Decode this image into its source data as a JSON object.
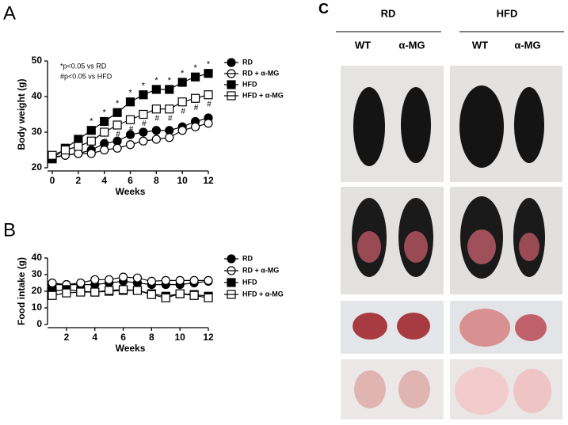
{
  "panels": {
    "a": "A",
    "b": "B",
    "c": "C"
  },
  "chart_data": [
    {
      "type": "line",
      "xlabel": "Weeks",
      "ylabel": "Body weight (g)",
      "x": [
        0,
        1,
        2,
        3,
        4,
        5,
        6,
        7,
        8,
        9,
        10,
        11,
        12
      ],
      "xlim": [
        0,
        12
      ],
      "xticks": [
        0,
        2,
        4,
        6,
        8,
        10,
        12
      ],
      "ylim": [
        20,
        50
      ],
      "yticks": [
        20,
        30,
        40,
        50
      ],
      "notes": [
        "*p<0.05 vs RD",
        "#p<0.05 vs HFD"
      ],
      "star": {
        "label": "*",
        "x": [
          3,
          4,
          5,
          6,
          7,
          8,
          9,
          10,
          11,
          12
        ]
      },
      "hash": {
        "label": "#",
        "x": [
          4,
          5,
          6,
          7,
          8,
          9,
          10,
          11,
          12
        ]
      },
      "series": [
        {
          "name": "RD",
          "color": "#000000",
          "marker": "circle",
          "filled": true,
          "values": [
            22.8,
            23.5,
            24,
            25,
            26.8,
            27.5,
            29.3,
            30,
            30.5,
            30.5,
            31.5,
            33,
            34
          ]
        },
        {
          "name": "RD + α-MG",
          "color": "#000000",
          "marker": "circle",
          "filled": false,
          "values": [
            23,
            23.5,
            24,
            24,
            25,
            25.5,
            26.5,
            27.5,
            28,
            28.5,
            30.5,
            31.5,
            32.5
          ]
        },
        {
          "name": "HFD",
          "color": "#000000",
          "marker": "square",
          "filled": true,
          "values": [
            22.5,
            25.5,
            28,
            30.5,
            33,
            35.5,
            38.5,
            40.5,
            42,
            42,
            44,
            45.5,
            46.5
          ]
        },
        {
          "name": "HFD + α-MG",
          "color": "#000000",
          "marker": "square",
          "filled": false,
          "values": [
            23.5,
            25,
            26,
            27.5,
            30,
            32,
            33.5,
            35,
            36.5,
            36.5,
            38.5,
            39.5,
            40.5
          ]
        }
      ]
    },
    {
      "type": "line",
      "xlabel": "Weeks",
      "ylabel": "Food intake (g)",
      "x": [
        1,
        2,
        3,
        4,
        5,
        6,
        7,
        8,
        9,
        10,
        11,
        12
      ],
      "xlim": [
        1,
        12
      ],
      "xticks": [
        2,
        4,
        6,
        8,
        10,
        12
      ],
      "ylim": [
        0,
        40
      ],
      "yticks": [
        0,
        10,
        20,
        30,
        40
      ],
      "series": [
        {
          "name": "RD",
          "color": "#000000",
          "marker": "circle",
          "filled": true,
          "values": [
            24,
            24,
            24,
            24,
            25,
            26,
            25,
            24,
            24,
            24,
            25,
            26
          ]
        },
        {
          "name": "RD + α-MG",
          "color": "#000000",
          "marker": "circle",
          "filled": false,
          "values": [
            25,
            24,
            25,
            27,
            27,
            28.5,
            28,
            26,
            26.5,
            26.5,
            26.5,
            26.5
          ]
        },
        {
          "name": "HFD",
          "color": "#000000",
          "marker": "square",
          "filled": true,
          "values": [
            20,
            21,
            20,
            19.5,
            20,
            20.5,
            20.5,
            18.5,
            17,
            18.5,
            18,
            17
          ]
        },
        {
          "name": "HFD + α-MG",
          "color": "#000000",
          "marker": "square",
          "filled": false,
          "values": [
            17.5,
            19,
            19.5,
            19.5,
            20.5,
            21,
            20.5,
            18,
            16,
            18.5,
            17.5,
            16
          ]
        }
      ]
    }
  ],
  "photo_panel": {
    "groups": [
      "RD",
      "HFD"
    ],
    "columns": [
      "WT",
      "α-MG",
      "WT",
      "α-MG"
    ]
  }
}
